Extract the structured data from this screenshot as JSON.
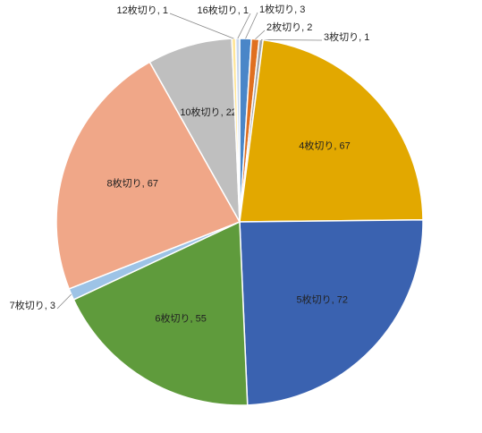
{
  "chart_data": {
    "type": "pie",
    "categories": [
      "1枚切り",
      "2枚切り",
      "3枚切り",
      "4枚切り",
      "5枚切り",
      "6枚切り",
      "7枚切り",
      "8枚切り",
      "10枚切り",
      "12枚切り",
      "16枚切り"
    ],
    "values": [
      3,
      2,
      1,
      67,
      72,
      55,
      3,
      67,
      22,
      1,
      1
    ],
    "label_separator": ", ",
    "colors": [
      "#4a86c8",
      "#e07020",
      "#a5a5a5",
      "#e2a800",
      "#3a62b0",
      "#5f9b3c",
      "#9dc3e6",
      "#f0a788",
      "#bfbfbf",
      "#ffe699",
      "#c9d8ef"
    ]
  }
}
